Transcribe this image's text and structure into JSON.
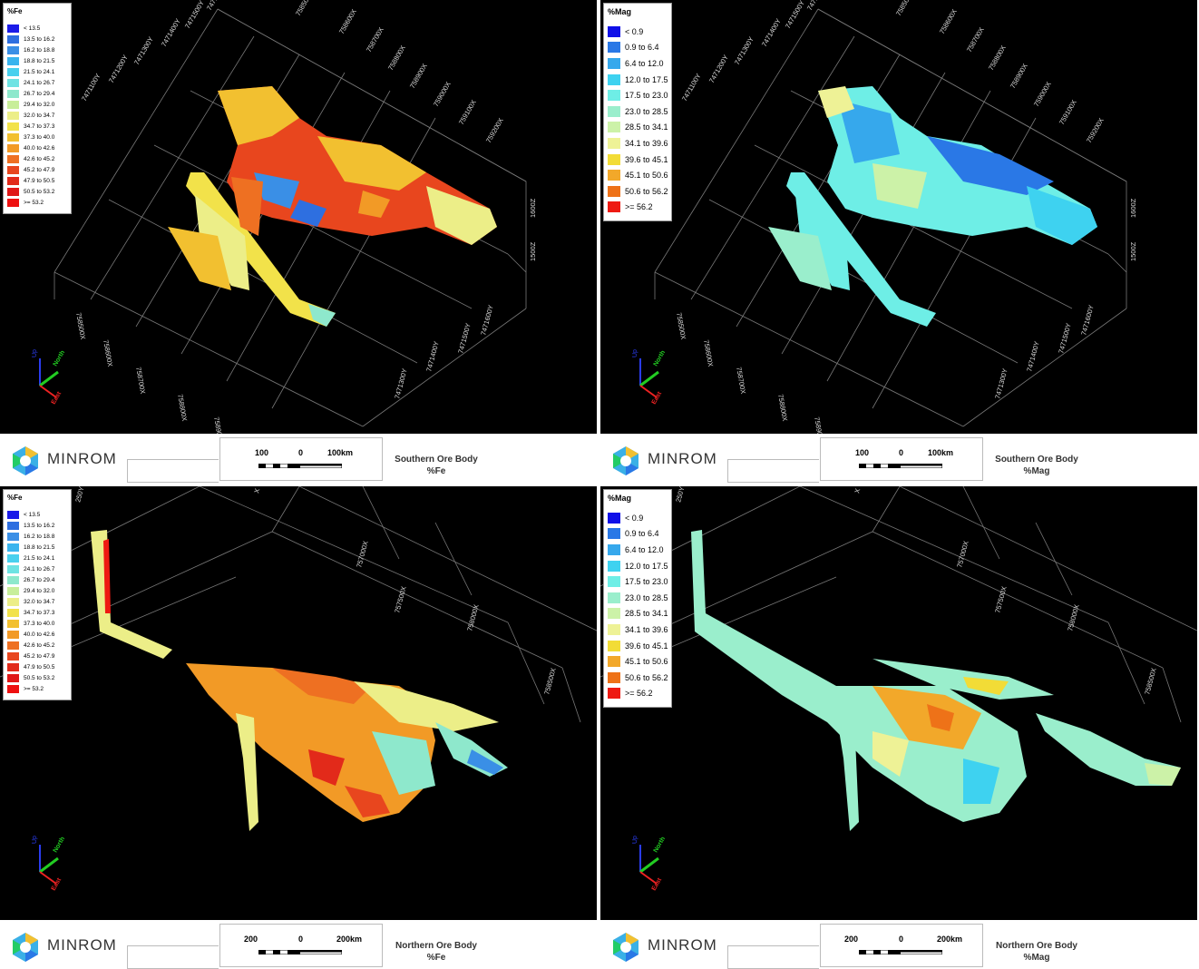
{
  "brand": "MINROM",
  "fe_legend": {
    "title": "%Fe",
    "items": [
      {
        "label": "< 13.5",
        "color": "#1b1be8"
      },
      {
        "label": "13.5 to 16.2",
        "color": "#2e6fe0"
      },
      {
        "label": "16.2 to 18.8",
        "color": "#3a8fe6"
      },
      {
        "label": "18.8 to 21.5",
        "color": "#3ab4ee"
      },
      {
        "label": "21.5 to 24.1",
        "color": "#49d0ee"
      },
      {
        "label": "24.1 to 26.7",
        "color": "#6ee3e3"
      },
      {
        "label": "26.7 to 29.4",
        "color": "#8ee8cc"
      },
      {
        "label": "29.4 to 32.0",
        "color": "#c8ee9a"
      },
      {
        "label": "32.0 to 34.7",
        "color": "#ecee88"
      },
      {
        "label": "34.7 to 37.3",
        "color": "#f2e24a"
      },
      {
        "label": "37.3 to 40.0",
        "color": "#f2c030"
      },
      {
        "label": "40.0 to 42.6",
        "color": "#f29a26"
      },
      {
        "label": "42.6 to 45.2",
        "color": "#ee7022"
      },
      {
        "label": "45.2 to 47.9",
        "color": "#e8461e"
      },
      {
        "label": "47.9 to 50.5",
        "color": "#e22a1a"
      },
      {
        "label": "50.5 to 53.2",
        "color": "#e01818"
      },
      {
        "label": ">= 53.2",
        "color": "#ee1010"
      }
    ]
  },
  "mag_legend": {
    "title": "%Mag",
    "items": [
      {
        "label": "< 0.9",
        "color": "#1010e8"
      },
      {
        "label": "0.9 to 6.4",
        "color": "#2a78e6"
      },
      {
        "label": "6.4 to 12.0",
        "color": "#36a8ec"
      },
      {
        "label": "12.0 to 17.5",
        "color": "#3ed2f0"
      },
      {
        "label": "17.5 to 23.0",
        "color": "#6eeee6"
      },
      {
        "label": "23.0 to 28.5",
        "color": "#9aeecc"
      },
      {
        "label": "28.5 to 34.1",
        "color": "#ccf2a8"
      },
      {
        "label": "34.1 to 39.6",
        "color": "#eef296"
      },
      {
        "label": "39.6 to 45.1",
        "color": "#f2dc36"
      },
      {
        "label": "45.1 to 50.6",
        "color": "#f2a82a"
      },
      {
        "label": "50.6 to 56.2",
        "color": "#ee7218"
      },
      {
        "label": ">= 56.2",
        "color": "#ee1a12"
      }
    ]
  },
  "panels": [
    {
      "id": "south-fe",
      "title_line1": "Southern Ore Body",
      "title_line2": "%Fe",
      "scale_left": "100",
      "scale_mid": "0",
      "scale_right": "100km",
      "axis_labels": [
        "7471600Y",
        "7471500Y",
        "7471400Y",
        "7471300Y",
        "7471200Y",
        "7471100Y",
        "758500X",
        "758600X",
        "758700X",
        "758800X",
        "758900X",
        "759000X",
        "759100X",
        "759200X",
        "1600Z",
        "1500Z",
        "758500X",
        "758600X",
        "758700X",
        "758800X",
        "758900X",
        "7471600Y",
        "7471500Y",
        "7471400Y",
        "7471300Y"
      ]
    },
    {
      "id": "south-mag",
      "title_line1": "Southern Ore Body",
      "title_line2": "%Mag",
      "scale_left": "100",
      "scale_mid": "0",
      "scale_right": "100km",
      "axis_labels": [
        "7471600Y",
        "7471500Y",
        "7471400Y",
        "7471300Y",
        "7471200Y",
        "7471100Y",
        "758500X",
        "758600X",
        "758700X",
        "758800X",
        "758900X",
        "759000X",
        "759100X",
        "759200X",
        "1600Z",
        "1500Z",
        "758500X",
        "758600X",
        "758700X",
        "758800X",
        "758900X",
        "7471600Y",
        "7471500Y",
        "7471400Y",
        "7471300Y"
      ]
    },
    {
      "id": "north-fe",
      "title_line1": "Northern Ore Body",
      "title_line2": "%Fe",
      "scale_left": "200",
      "scale_mid": "0",
      "scale_right": "200km",
      "axis_labels": [
        "250Y",
        "X",
        "757000X",
        "757500X",
        "758000X",
        "758500X"
      ]
    },
    {
      "id": "north-mag",
      "title_line1": "Northern Ore Body",
      "title_line2": "%Mag",
      "scale_left": "200",
      "scale_mid": "0",
      "scale_right": "200km",
      "axis_labels": [
        "250Y",
        "X",
        "757000X",
        "757500X",
        "758000X",
        "758500X"
      ]
    }
  ],
  "compass": {
    "up": "Up",
    "north": "North",
    "east": "East"
  }
}
